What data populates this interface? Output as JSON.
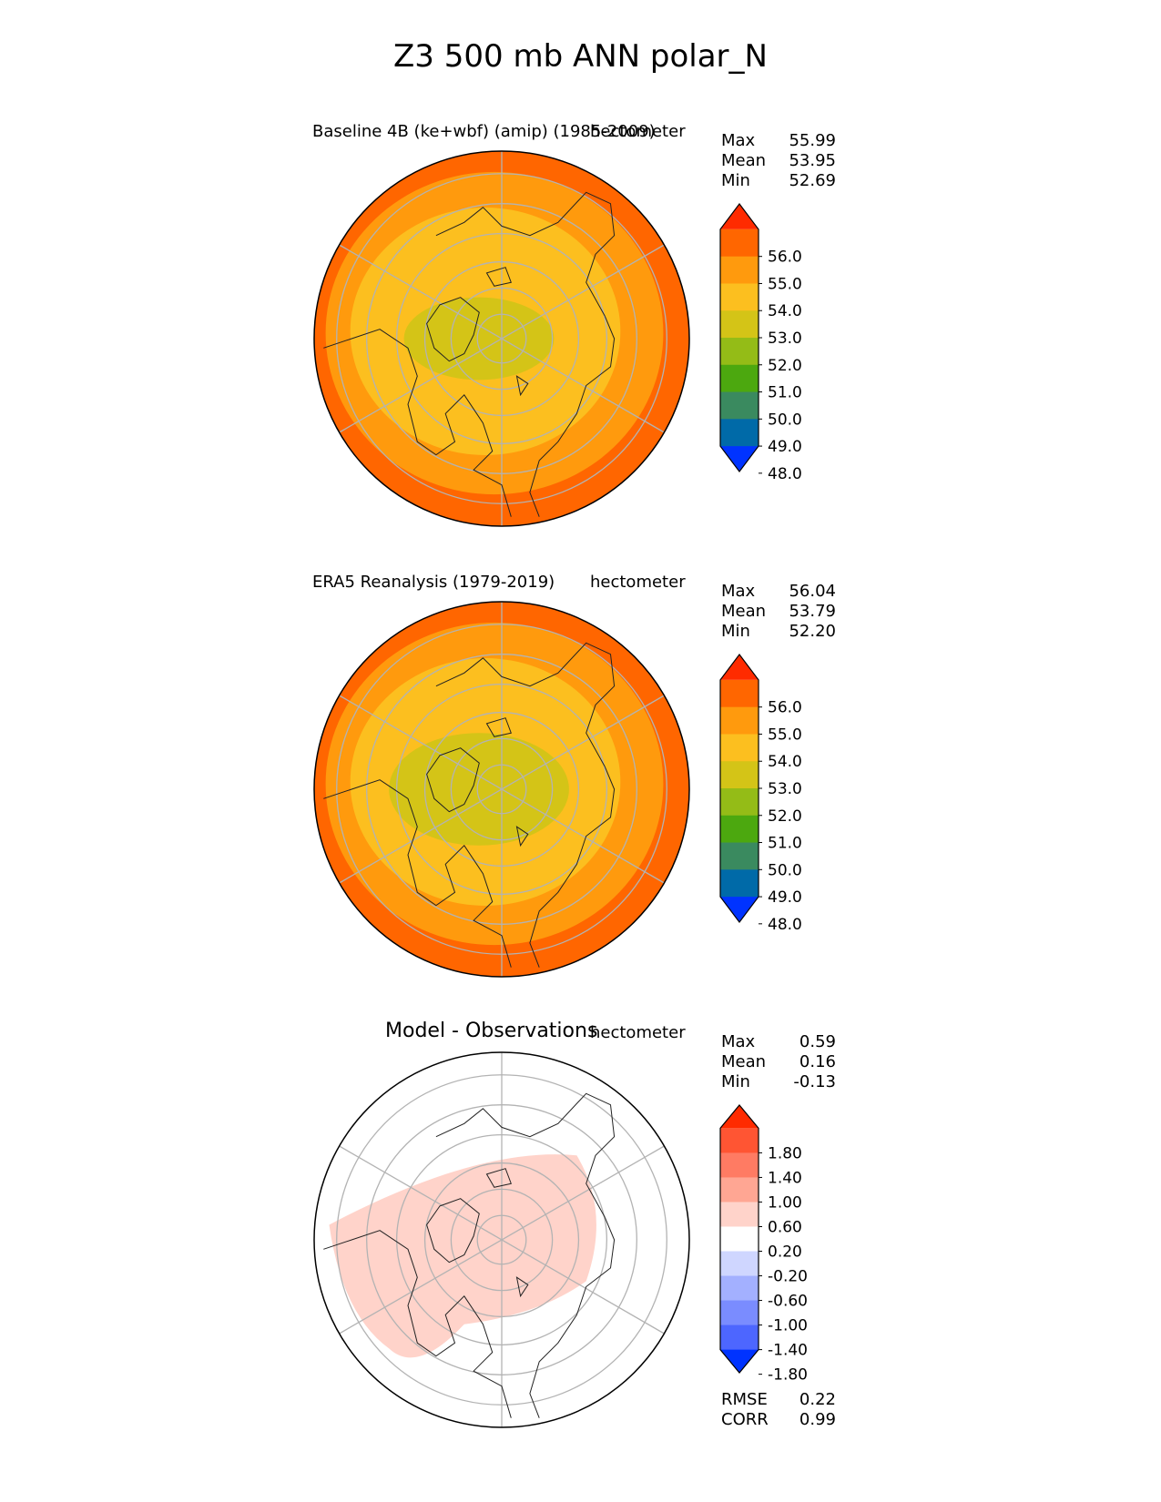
{
  "figure": {
    "title": "Z3 500 mb ANN polar_N"
  },
  "panels": [
    {
      "title": "Baseline 4B (ke+wbf) (amip) (1985-2009)",
      "units": "hectometer",
      "stats": [
        {
          "label": "Max",
          "value": "55.99"
        },
        {
          "label": "Mean",
          "value": "53.95"
        },
        {
          "label": "Min",
          "value": "52.69"
        }
      ],
      "colorbar": {
        "ticks": [
          "56.0",
          "55.0",
          "54.0",
          "53.0",
          "52.0",
          "51.0",
          "50.0",
          "49.0",
          "48.0"
        ],
        "colors": [
          "#ff2b00",
          "#ff6600",
          "#ff9a0d",
          "#fcbf1f",
          "#d4c417",
          "#94bc17",
          "#4ca80f",
          "#3a8a5f",
          "#006aa8",
          "#0033ff"
        ]
      },
      "rings": [
        "#ff6600",
        "#ff9a0d",
        "#fcbf1f"
      ],
      "core_color": "#d4c417"
    },
    {
      "title": "ERA5 Reanalysis (1979-2019)",
      "units": "hectometer",
      "stats": [
        {
          "label": "Max",
          "value": "56.04"
        },
        {
          "label": "Mean",
          "value": "53.79"
        },
        {
          "label": "Min",
          "value": "52.20"
        }
      ],
      "colorbar": {
        "ticks": [
          "56.0",
          "55.0",
          "54.0",
          "53.0",
          "52.0",
          "51.0",
          "50.0",
          "49.0",
          "48.0"
        ],
        "colors": [
          "#ff2b00",
          "#ff6600",
          "#ff9a0d",
          "#fcbf1f",
          "#d4c417",
          "#94bc17",
          "#4ca80f",
          "#3a8a5f",
          "#006aa8",
          "#0033ff"
        ]
      },
      "rings": [
        "#ff6600",
        "#ff9a0d",
        "#fcbf1f"
      ],
      "core_color": "#d4c417"
    },
    {
      "title": "Model - Observations",
      "units": "hectometer",
      "stats": [
        {
          "label": "Max",
          "value": "0.59"
        },
        {
          "label": "Mean",
          "value": "0.16"
        },
        {
          "label": "Min",
          "value": "-0.13"
        }
      ],
      "colorbar": {
        "ticks": [
          "1.80",
          "1.40",
          "1.00",
          "0.60",
          "0.20",
          "-0.20",
          "-0.60",
          "-1.00",
          "-1.40",
          "-1.80"
        ],
        "colors": [
          "#ff2b00",
          "#ff5533",
          "#ff7b63",
          "#ffa693",
          "#ffd3ca",
          "#ffffff",
          "#cfd6ff",
          "#a3b0ff",
          "#7a8cff",
          "#4d66ff",
          "#0033ff"
        ]
      },
      "core_color": "#ffd3ca",
      "metrics": [
        {
          "label": "RMSE",
          "value": "0.22"
        },
        {
          "label": "CORR",
          "value": "0.99"
        }
      ]
    }
  ],
  "chart_data": [
    {
      "type": "heatmap",
      "title": "Baseline 4B (ke+wbf) (amip) (1985-2009)",
      "projection": "north polar stereographic",
      "variable": "Z3 500 mb ANN",
      "units": "hectometer",
      "levels": [
        48.0,
        49.0,
        50.0,
        51.0,
        52.0,
        53.0,
        54.0,
        55.0,
        56.0
      ],
      "stats": {
        "max": 55.99,
        "mean": 53.95,
        "min": 52.69
      }
    },
    {
      "type": "heatmap",
      "title": "ERA5 Reanalysis (1979-2019)",
      "projection": "north polar stereographic",
      "variable": "Z3 500 mb ANN",
      "units": "hectometer",
      "levels": [
        48.0,
        49.0,
        50.0,
        51.0,
        52.0,
        53.0,
        54.0,
        55.0,
        56.0
      ],
      "stats": {
        "max": 56.04,
        "mean": 53.79,
        "min": 52.2
      }
    },
    {
      "type": "heatmap",
      "title": "Model - Observations",
      "projection": "north polar stereographic",
      "units": "hectometer",
      "levels": [
        -1.8,
        -1.4,
        -1.0,
        -0.6,
        -0.2,
        0.2,
        0.6,
        1.0,
        1.4,
        1.8
      ],
      "stats": {
        "max": 0.59,
        "mean": 0.16,
        "min": -0.13,
        "rmse": 0.22,
        "corr": 0.99
      }
    }
  ]
}
